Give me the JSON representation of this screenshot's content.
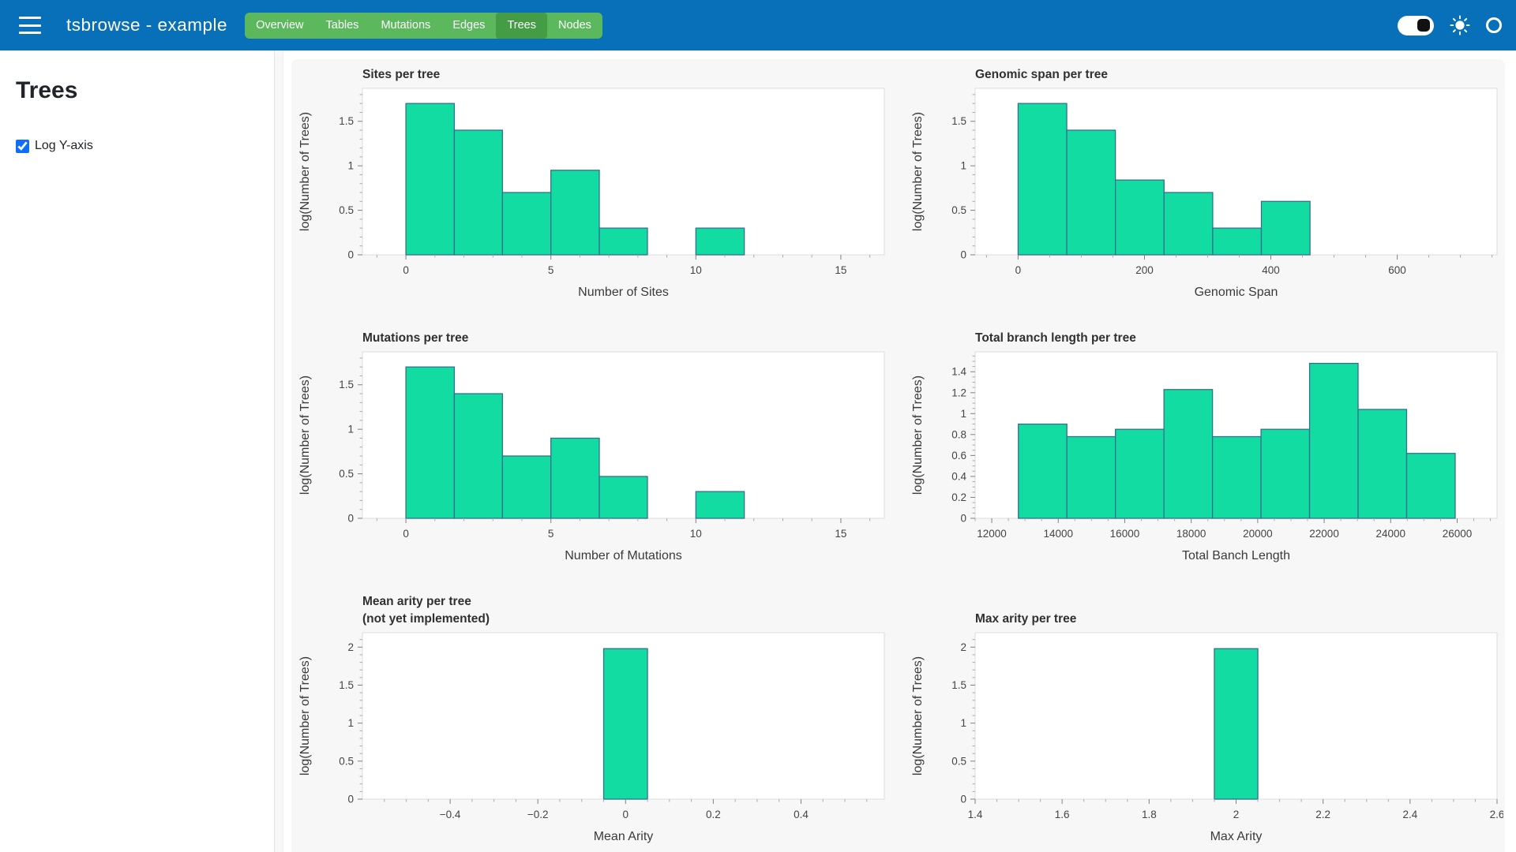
{
  "header": {
    "title": "tsbrowse - example",
    "tabs": [
      {
        "label": "Overview",
        "active": false
      },
      {
        "label": "Tables",
        "active": false
      },
      {
        "label": "Mutations",
        "active": false
      },
      {
        "label": "Edges",
        "active": false
      },
      {
        "label": "Trees",
        "active": true
      },
      {
        "label": "Nodes",
        "active": false
      }
    ],
    "icons": [
      "theme-toggle-switch",
      "sun-icon",
      "busy-indicator-circle"
    ]
  },
  "sidebar": {
    "heading": "Trees",
    "log_y_checkbox": {
      "label": "Log Y-axis",
      "checked": true
    }
  },
  "colors": {
    "header_bg": "#0870b8",
    "tab_bg": "#5cb85c",
    "tab_active_bg": "#449d44",
    "bar_fill": "#13dca3",
    "bar_edge": "#35708c",
    "accent": "#0d6efd",
    "axis_frame": "#dcdcdc",
    "tick_text": "#444444",
    "title_text": "#303030"
  },
  "chart_data": [
    {
      "id": "sites-per-tree",
      "type": "bar",
      "representation": "histogram",
      "title_lines": [
        "Sites per tree"
      ],
      "xlabel": "Number of Sites",
      "ylabel": "log(Number of Trees)",
      "xlim": [
        -1.5,
        16.5
      ],
      "ylim": [
        0,
        1.87
      ],
      "xticks": [
        0,
        5,
        10,
        15
      ],
      "yticks": [
        0,
        0.5,
        1,
        1.5
      ],
      "xminor": 1,
      "yminor": 0.1,
      "grid": false,
      "legend": null,
      "bars": [
        {
          "x0": 0,
          "x1": 1.67,
          "h": 1.7
        },
        {
          "x0": 1.67,
          "x1": 3.33,
          "h": 1.4
        },
        {
          "x0": 3.33,
          "x1": 5,
          "h": 0.7
        },
        {
          "x0": 5,
          "x1": 6.67,
          "h": 0.95
        },
        {
          "x0": 6.67,
          "x1": 8.33,
          "h": 0.3
        },
        {
          "x0": 10,
          "x1": 11.67,
          "h": 0.3
        }
      ]
    },
    {
      "id": "genomic-span-per-tree",
      "type": "bar",
      "representation": "histogram",
      "title_lines": [
        "Genomic span per tree"
      ],
      "xlabel": "Genomic Span",
      "ylabel": "log(Number of Trees)",
      "xlim": [
        -68,
        758
      ],
      "ylim": [
        0,
        1.87
      ],
      "xticks": [
        0,
        200,
        400,
        600
      ],
      "yticks": [
        0,
        0.5,
        1,
        1.5
      ],
      "xminor": 50,
      "yminor": 0.1,
      "grid": false,
      "legend": null,
      "bars": [
        {
          "x0": 0,
          "x1": 77,
          "h": 1.7
        },
        {
          "x0": 77,
          "x1": 154,
          "h": 1.4
        },
        {
          "x0": 154,
          "x1": 231,
          "h": 0.84
        },
        {
          "x0": 231,
          "x1": 308,
          "h": 0.7
        },
        {
          "x0": 308,
          "x1": 385,
          "h": 0.3
        },
        {
          "x0": 385,
          "x1": 462,
          "h": 0.6
        }
      ]
    },
    {
      "id": "mutations-per-tree",
      "type": "bar",
      "representation": "histogram",
      "title_lines": [
        "Mutations per tree"
      ],
      "xlabel": "Number of Mutations",
      "ylabel": "log(Number of Trees)",
      "xlim": [
        -1.5,
        16.5
      ],
      "ylim": [
        0,
        1.87
      ],
      "xticks": [
        0,
        5,
        10,
        15
      ],
      "yticks": [
        0,
        0.5,
        1,
        1.5
      ],
      "xminor": 1,
      "yminor": 0.1,
      "grid": false,
      "legend": null,
      "bars": [
        {
          "x0": 0,
          "x1": 1.67,
          "h": 1.7
        },
        {
          "x0": 1.67,
          "x1": 3.33,
          "h": 1.4
        },
        {
          "x0": 3.33,
          "x1": 5,
          "h": 0.7
        },
        {
          "x0": 5,
          "x1": 6.67,
          "h": 0.9
        },
        {
          "x0": 6.67,
          "x1": 8.33,
          "h": 0.47
        },
        {
          "x0": 10,
          "x1": 11.67,
          "h": 0.3
        }
      ]
    },
    {
      "id": "total-branch-length-per-tree",
      "type": "bar",
      "representation": "histogram",
      "title_lines": [
        "Total branch length per tree"
      ],
      "xlabel": "Total Banch Length",
      "ylabel": "log(Number of Trees)",
      "xlim": [
        11500,
        27200
      ],
      "ylim": [
        0,
        1.59
      ],
      "xticks": [
        12000,
        14000,
        16000,
        18000,
        20000,
        22000,
        24000,
        26000
      ],
      "yticks": [
        0,
        0.2,
        0.4,
        0.6,
        0.8,
        1,
        1.2,
        1.4
      ],
      "xminor": 500,
      "yminor": 0.05,
      "grid": false,
      "legend": null,
      "bars": [
        {
          "x0": 12800,
          "x1": 14260,
          "h": 0.9
        },
        {
          "x0": 14260,
          "x1": 15720,
          "h": 0.78
        },
        {
          "x0": 15720,
          "x1": 17180,
          "h": 0.85
        },
        {
          "x0": 17180,
          "x1": 18640,
          "h": 1.23
        },
        {
          "x0": 18640,
          "x1": 20100,
          "h": 0.78
        },
        {
          "x0": 20100,
          "x1": 21560,
          "h": 0.85
        },
        {
          "x0": 21560,
          "x1": 23020,
          "h": 1.48
        },
        {
          "x0": 23020,
          "x1": 24480,
          "h": 1.04
        },
        {
          "x0": 24480,
          "x1": 25940,
          "h": 0.62
        }
      ]
    },
    {
      "id": "mean-arity-per-tree",
      "type": "bar",
      "representation": "histogram",
      "title_lines": [
        "Mean arity per tree",
        "(not yet implemented)"
      ],
      "xlabel": "Mean Arity",
      "ylabel": "log(Number of Trees)",
      "xlim": [
        -0.6,
        0.59
      ],
      "ylim": [
        0,
        2.19
      ],
      "xticks": [
        -0.4,
        -0.2,
        0,
        0.2,
        0.4
      ],
      "yticks": [
        0,
        0.5,
        1,
        1.5,
        2
      ],
      "xminor": 0.05,
      "yminor": 0.1,
      "grid": false,
      "legend": null,
      "bars": [
        {
          "x0": -0.05,
          "x1": 0.05,
          "h": 1.98
        }
      ]
    },
    {
      "id": "max-arity-per-tree",
      "type": "bar",
      "representation": "histogram",
      "title_lines": [
        "Max arity per tree"
      ],
      "xlabel": "Max Arity",
      "ylabel": "log(Number of Trees)",
      "xlim": [
        1.4,
        2.6
      ],
      "ylim": [
        0,
        2.19
      ],
      "xticks": [
        1.4,
        1.6,
        1.8,
        2,
        2.2,
        2.4,
        2.6
      ],
      "yticks": [
        0,
        0.5,
        1,
        1.5,
        2
      ],
      "xminor": 0.05,
      "yminor": 0.1,
      "grid": false,
      "legend": null,
      "bars": [
        {
          "x0": 1.95,
          "x1": 2.05,
          "h": 1.98
        }
      ]
    }
  ]
}
